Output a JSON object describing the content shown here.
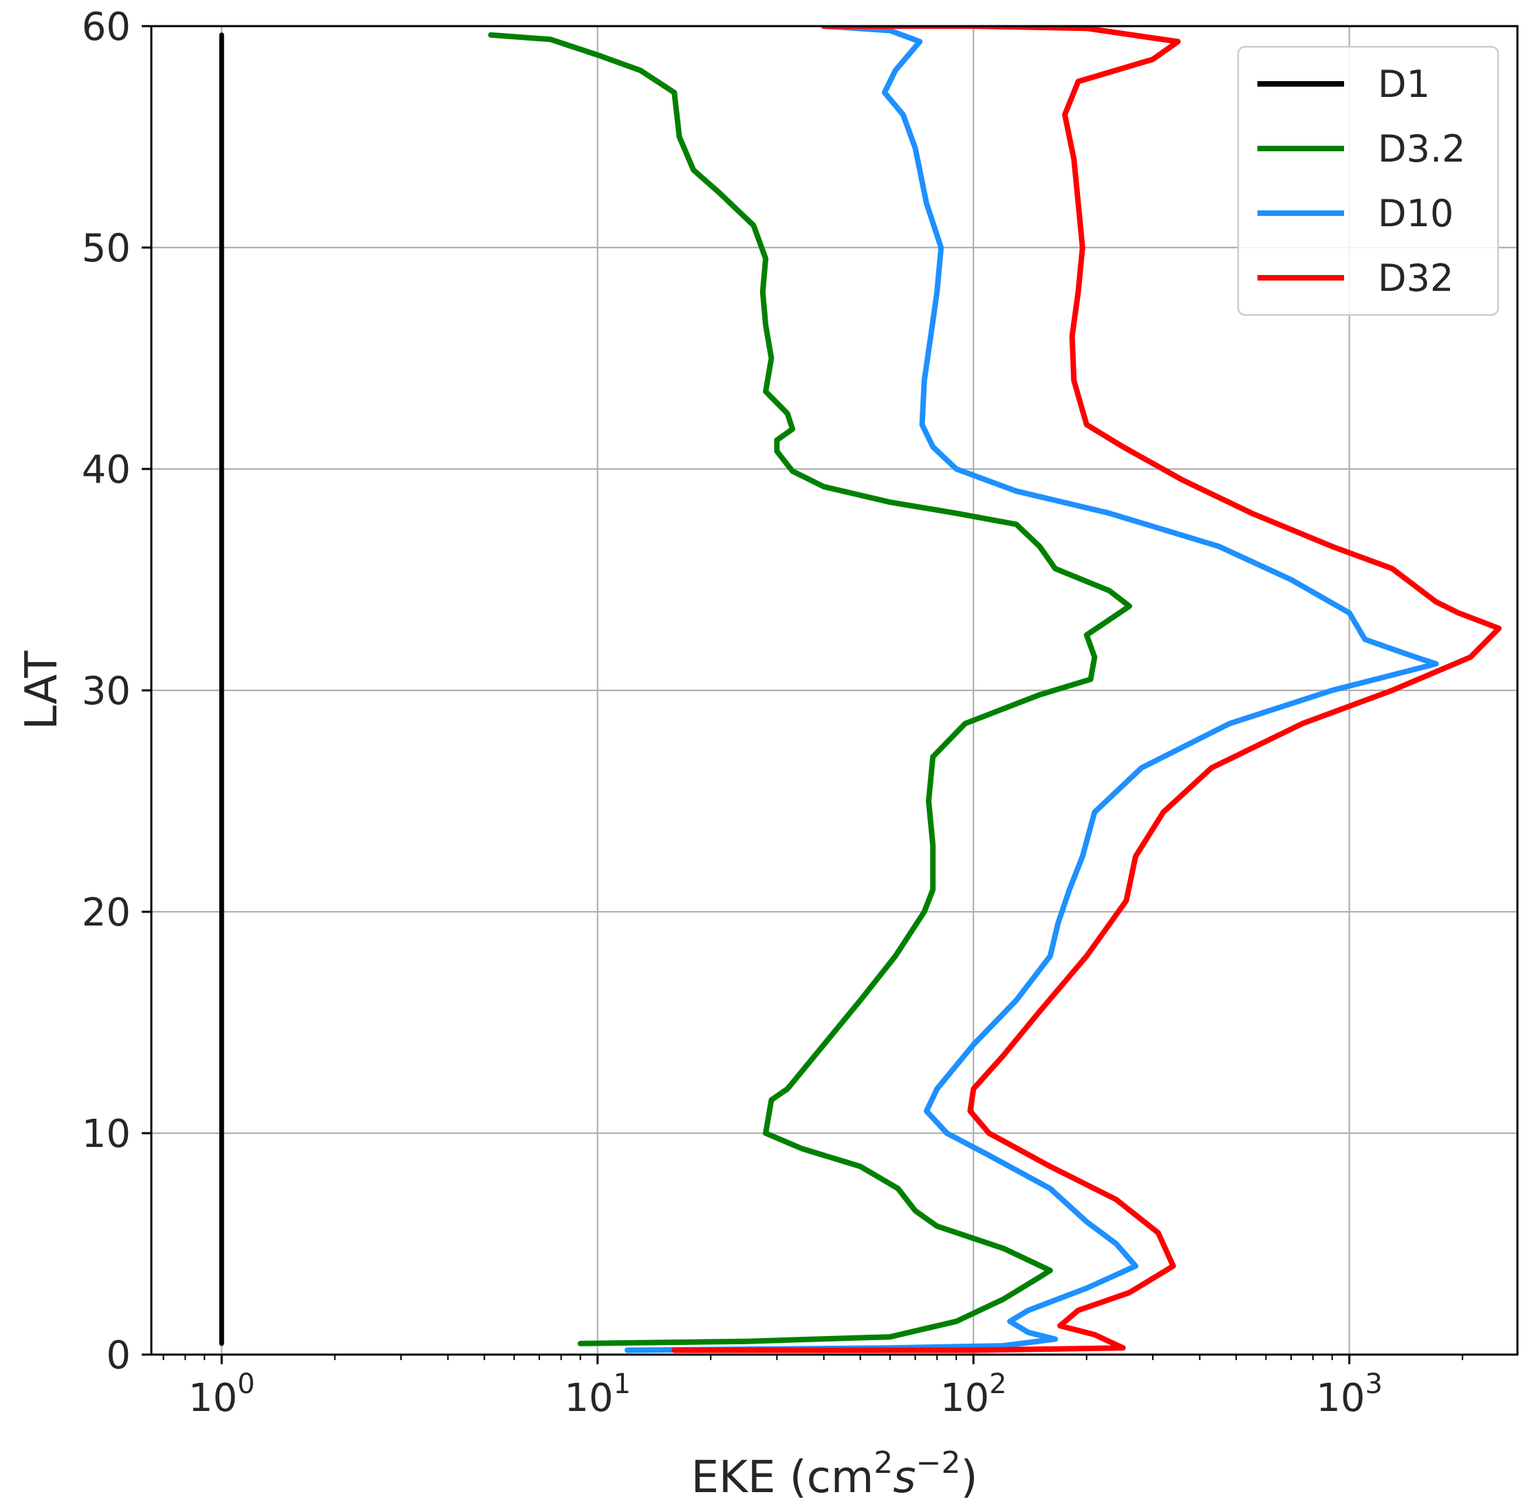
{
  "chart_data": {
    "type": "line",
    "xlabel": "EKE (cm²s⁻²)",
    "xlabel_parts": {
      "base": "EKE (cm",
      "sup1": "2",
      "var": "s",
      "sup2": "−2",
      "close": ")"
    },
    "ylabel": "LAT",
    "xscale": "log",
    "xlim": [
      0.65,
      2800
    ],
    "ylim": [
      0,
      60
    ],
    "grid": true,
    "legend_position": "top-right",
    "y_ticks": [
      {
        "value": 0,
        "label": "0"
      },
      {
        "value": 10,
        "label": "10"
      },
      {
        "value": 20,
        "label": "20"
      },
      {
        "value": 30,
        "label": "30"
      },
      {
        "value": 40,
        "label": "40"
      },
      {
        "value": 50,
        "label": "50"
      },
      {
        "value": 60,
        "label": "60"
      }
    ],
    "x_ticks": [
      {
        "value": 1,
        "base": "10",
        "exp": "0"
      },
      {
        "value": 10,
        "base": "10",
        "exp": "1"
      },
      {
        "value": 100,
        "base": "10",
        "exp": "2"
      },
      {
        "value": 1000,
        "base": "10",
        "exp": "3"
      }
    ],
    "series": [
      {
        "name": "D1",
        "color": "#000000",
        "points": [
          [
            1.0,
            0.5
          ],
          [
            1.0,
            10
          ],
          [
            1.0,
            20
          ],
          [
            1.0,
            30
          ],
          [
            1.0,
            40
          ],
          [
            1.0,
            50
          ],
          [
            1.0,
            59.6
          ]
        ]
      },
      {
        "name": "D3.2",
        "color": "#008000",
        "points": [
          [
            9.0,
            0.5
          ],
          [
            25,
            0.6
          ],
          [
            60,
            0.8
          ],
          [
            90,
            1.5
          ],
          [
            120,
            2.5
          ],
          [
            150,
            3.5
          ],
          [
            160,
            3.8
          ],
          [
            120,
            4.8
          ],
          [
            80,
            5.8
          ],
          [
            70,
            6.5
          ],
          [
            63,
            7.5
          ],
          [
            50,
            8.5
          ],
          [
            35,
            9.3
          ],
          [
            28,
            10
          ],
          [
            29,
            11.5
          ],
          [
            32,
            12
          ],
          [
            40,
            14
          ],
          [
            50,
            16
          ],
          [
            62,
            18
          ],
          [
            74,
            20
          ],
          [
            78,
            21
          ],
          [
            78,
            23
          ],
          [
            76,
            25
          ],
          [
            78,
            27
          ],
          [
            95,
            28.5
          ],
          [
            150,
            29.8
          ],
          [
            205,
            30.5
          ],
          [
            210,
            31.5
          ],
          [
            200,
            32.5
          ],
          [
            260,
            33.8
          ],
          [
            230,
            34.5
          ],
          [
            165,
            35.5
          ],
          [
            150,
            36.5
          ],
          [
            130,
            37.5
          ],
          [
            90,
            38
          ],
          [
            60,
            38.5
          ],
          [
            40,
            39.2
          ],
          [
            33,
            39.9
          ],
          [
            30,
            40.8
          ],
          [
            30,
            41.3
          ],
          [
            33,
            41.8
          ],
          [
            32,
            42.5
          ],
          [
            28,
            43.5
          ],
          [
            29,
            45
          ],
          [
            28,
            46.5
          ],
          [
            27.5,
            48
          ],
          [
            28,
            49.5
          ],
          [
            26,
            51
          ],
          [
            21,
            52.5
          ],
          [
            18,
            53.5
          ],
          [
            16.5,
            55
          ],
          [
            16,
            57
          ],
          [
            13,
            58
          ],
          [
            10,
            58.7
          ],
          [
            7.5,
            59.4
          ],
          [
            5.2,
            59.6
          ]
        ]
      },
      {
        "name": "D10",
        "color": "#1E90FF",
        "points": [
          [
            12,
            0.2
          ],
          [
            60,
            0.3
          ],
          [
            120,
            0.4
          ],
          [
            165,
            0.7
          ],
          [
            140,
            1.0
          ],
          [
            125,
            1.5
          ],
          [
            140,
            2.0
          ],
          [
            200,
            3.0
          ],
          [
            270,
            4.0
          ],
          [
            240,
            5.0
          ],
          [
            200,
            6.0
          ],
          [
            160,
            7.5
          ],
          [
            110,
            9.0
          ],
          [
            85,
            10
          ],
          [
            75,
            11
          ],
          [
            80,
            12
          ],
          [
            100,
            14
          ],
          [
            130,
            16
          ],
          [
            160,
            18
          ],
          [
            168,
            19.5
          ],
          [
            180,
            21
          ],
          [
            195,
            22.5
          ],
          [
            210,
            24.5
          ],
          [
            280,
            26.5
          ],
          [
            480,
            28.5
          ],
          [
            900,
            30
          ],
          [
            1700,
            31.2
          ],
          [
            1500,
            31.5
          ],
          [
            1100,
            32.3
          ],
          [
            1000,
            33.5
          ],
          [
            700,
            35
          ],
          [
            450,
            36.5
          ],
          [
            230,
            38
          ],
          [
            130,
            39
          ],
          [
            90,
            40
          ],
          [
            78,
            41
          ],
          [
            73,
            42
          ],
          [
            74,
            44
          ],
          [
            77,
            46
          ],
          [
            80,
            48
          ],
          [
            82,
            50
          ],
          [
            75,
            52
          ],
          [
            70,
            54.5
          ],
          [
            65,
            56
          ],
          [
            58,
            57
          ],
          [
            62,
            58
          ],
          [
            72,
            59.3
          ],
          [
            60,
            59.8
          ],
          [
            40,
            60
          ]
        ]
      },
      {
        "name": "D32",
        "color": "#FF0000",
        "points": [
          [
            16,
            0.2
          ],
          [
            100,
            0.2
          ],
          [
            250,
            0.3
          ],
          [
            210,
            0.9
          ],
          [
            170,
            1.3
          ],
          [
            190,
            2.0
          ],
          [
            260,
            2.8
          ],
          [
            340,
            4.0
          ],
          [
            310,
            5.5
          ],
          [
            240,
            7.0
          ],
          [
            160,
            8.5
          ],
          [
            110,
            10
          ],
          [
            98,
            11
          ],
          [
            100,
            12
          ],
          [
            120,
            13.5
          ],
          [
            150,
            15.5
          ],
          [
            200,
            18
          ],
          [
            255,
            20.5
          ],
          [
            270,
            22.5
          ],
          [
            320,
            24.5
          ],
          [
            430,
            26.5
          ],
          [
            750,
            28.5
          ],
          [
            1300,
            30
          ],
          [
            2100,
            31.5
          ],
          [
            2500,
            32.8
          ],
          [
            1950,
            33.5
          ],
          [
            1700,
            34
          ],
          [
            1300,
            35.5
          ],
          [
            900,
            36.5
          ],
          [
            550,
            38
          ],
          [
            360,
            39.5
          ],
          [
            250,
            41
          ],
          [
            200,
            42
          ],
          [
            185,
            44
          ],
          [
            183,
            46
          ],
          [
            190,
            48
          ],
          [
            195,
            50
          ],
          [
            190,
            52
          ],
          [
            185,
            54
          ],
          [
            175,
            56
          ],
          [
            190,
            57.5
          ],
          [
            300,
            58.5
          ],
          [
            350,
            59.3
          ],
          [
            200,
            59.9
          ],
          [
            100,
            60
          ],
          [
            40,
            60
          ]
        ]
      }
    ]
  }
}
